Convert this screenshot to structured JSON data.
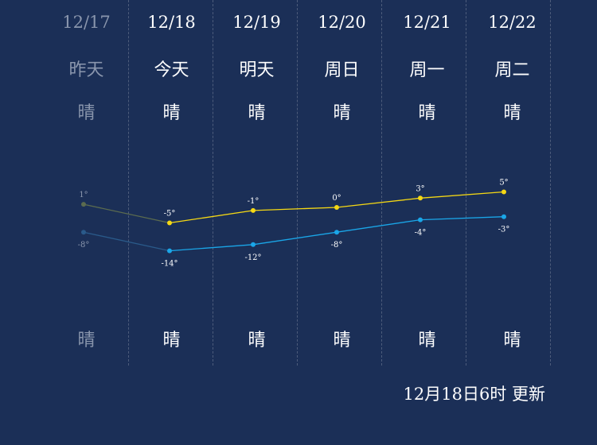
{
  "days": [
    {
      "date": "12/17",
      "name": "昨天",
      "day_weather": "晴",
      "night_weather": "晴",
      "high": 1,
      "low": -8,
      "high_label": "1°",
      "low_label": "-8°",
      "past": true
    },
    {
      "date": "12/18",
      "name": "今天",
      "day_weather": "晴",
      "night_weather": "晴",
      "high": -5,
      "low": -14,
      "high_label": "-5°",
      "low_label": "-14°",
      "past": false
    },
    {
      "date": "12/19",
      "name": "明天",
      "day_weather": "晴",
      "night_weather": "晴",
      "high": -1,
      "low": -12,
      "high_label": "-1°",
      "low_label": "-12°",
      "past": false
    },
    {
      "date": "12/20",
      "name": "周日",
      "day_weather": "晴",
      "night_weather": "晴",
      "high": 0,
      "low": -8,
      "high_label": "0°",
      "low_label": "-8°",
      "past": false
    },
    {
      "date": "12/21",
      "name": "周一",
      "day_weather": "晴",
      "night_weather": "晴",
      "high": 3,
      "low": -4,
      "high_label": "3°",
      "low_label": "-4°",
      "past": false
    },
    {
      "date": "12/22",
      "name": "周二",
      "day_weather": "晴",
      "night_weather": "晴",
      "high": 5,
      "low": -3,
      "high_label": "5°",
      "low_label": "-3°",
      "past": false
    }
  ],
  "colors": {
    "background": "#1b2f57",
    "high_line": "#f5d814",
    "low_line": "#1aa6e8",
    "past_high": "#5b6b4f",
    "past_low": "#2a5a8a"
  },
  "updated_text": "12月18日6时 更新"
}
